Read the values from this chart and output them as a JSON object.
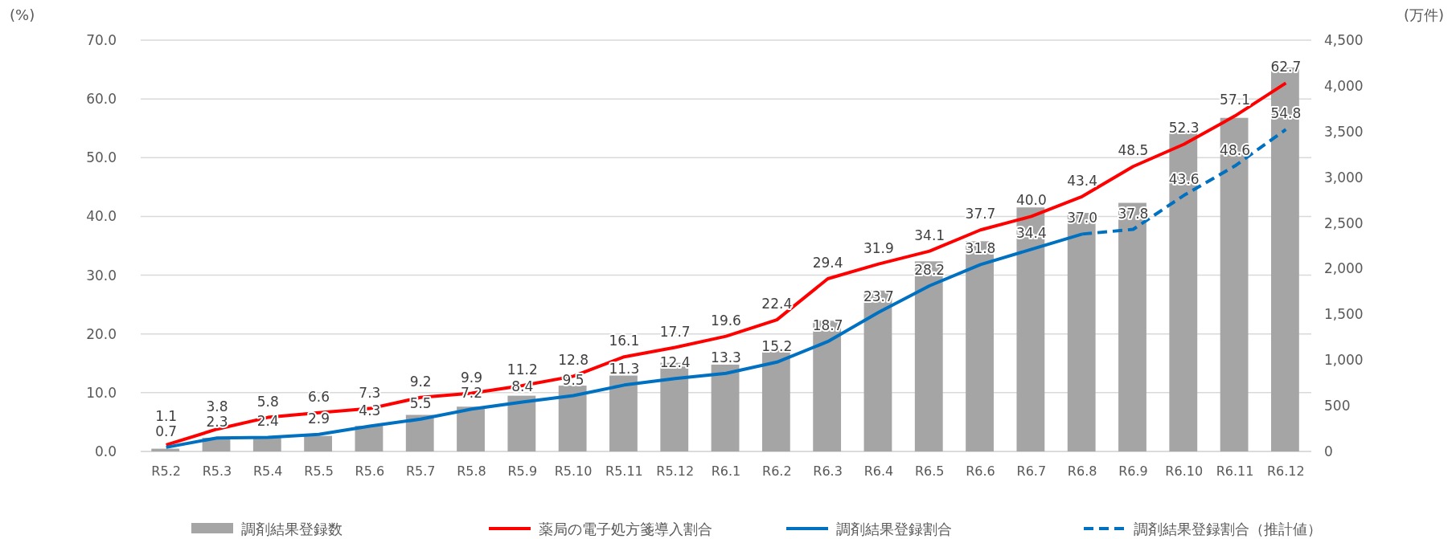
{
  "chart_data": {
    "type": "bar",
    "categories": [
      "R5.2",
      "R5.3",
      "R5.4",
      "R5.5",
      "R5.6",
      "R5.7",
      "R5.8",
      "R5.9",
      "R5.10",
      "R5.11",
      "R5.12",
      "R6.1",
      "R6.2",
      "R6.3",
      "R6.4",
      "R6.5",
      "R6.6",
      "R6.7",
      "R6.8",
      "R6.9",
      "R6.10",
      "R6.11",
      "R6.12"
    ],
    "series": [
      {
        "name": "調剤結果登録数",
        "axis": "y2",
        "color": "#a5a5a5",
        "values": [
          30,
          150,
          150,
          170,
          280,
          400,
          490,
          610,
          720,
          830,
          970,
          950,
          1110,
          1430,
          1760,
          2080,
          2300,
          2670,
          2610,
          2720,
          3510,
          3650,
          4200
        ]
      },
      {
        "name": "薬局の電子処方箋導入割合",
        "type": "line",
        "color": "#ff0000",
        "line_style": "solid",
        "values": [
          1.1,
          3.8,
          5.8,
          6.6,
          7.3,
          9.2,
          9.9,
          11.2,
          12.8,
          16.1,
          17.7,
          19.6,
          22.4,
          29.4,
          31.9,
          34.1,
          37.7,
          40.0,
          43.4,
          48.5,
          52.3,
          57.1,
          62.7
        ],
        "value_labels": [
          "1.1",
          "3.8",
          "5.8",
          "6.6",
          "7.3",
          "9.2",
          "9.9",
          "11.2",
          "12.8",
          "16.1",
          "17.7",
          "19.6",
          "22.4",
          "29.4",
          "31.9",
          "34.1",
          "37.7",
          "40.0",
          "43.4",
          "48.5",
          "52.3",
          "57.1",
          "62.7"
        ]
      },
      {
        "name": "調剤結果登録割合",
        "type": "line",
        "color": "#0070c0",
        "line_style": "solid",
        "values": [
          0.7,
          2.3,
          2.4,
          2.9,
          4.3,
          5.5,
          7.2,
          8.4,
          9.5,
          11.3,
          12.4,
          13.3,
          15.2,
          18.7,
          23.7,
          28.2,
          31.8,
          34.4,
          37.0,
          null,
          null,
          null,
          null
        ],
        "value_labels": [
          "0.7",
          "2.3",
          "2.4",
          "2.9",
          "4.3",
          "5.5",
          "7.2",
          "8.4",
          "9.5",
          "11.3",
          "12.4",
          "13.3",
          "15.2",
          "18.7",
          "23.7",
          "28.2",
          "31.8",
          "34.4",
          "37.0",
          null,
          null,
          null,
          null
        ]
      },
      {
        "name": "調剤結果登録割合（推計値）",
        "type": "line",
        "color": "#0070c0",
        "line_style": "dashed",
        "values": [
          null,
          null,
          null,
          null,
          null,
          null,
          null,
          null,
          null,
          null,
          null,
          null,
          null,
          null,
          null,
          null,
          null,
          null,
          37.0,
          37.8,
          43.6,
          48.6,
          54.8
        ],
        "value_labels": [
          null,
          null,
          null,
          null,
          null,
          null,
          null,
          null,
          null,
          null,
          null,
          null,
          null,
          null,
          null,
          null,
          null,
          null,
          null,
          "37.8",
          "43.6",
          "48.6",
          "54.8"
        ]
      }
    ],
    "ylabel": "(%)",
    "y2label": "(万件)",
    "ylim": [
      0,
      70
    ],
    "yticks": [
      {
        "value": 0,
        "label": "0.0"
      },
      {
        "value": 10,
        "label": "10.0"
      },
      {
        "value": 20,
        "label": "20.0"
      },
      {
        "value": 30,
        "label": "30.0"
      },
      {
        "value": 40,
        "label": "40.0"
      },
      {
        "value": 50,
        "label": "50.0"
      },
      {
        "value": 60,
        "label": "60.0"
      },
      {
        "value": 70,
        "label": "70.0"
      }
    ],
    "y2lim": [
      0,
      4500
    ],
    "y2ticks": [
      0,
      {
        "value": 500,
        "label": "500"
      },
      {
        "value": 1000,
        "label": "1,000"
      },
      {
        "value": 1500,
        "label": "1,500"
      },
      {
        "value": 2000,
        "label": "2,000"
      },
      {
        "value": 2500,
        "label": "2,500"
      },
      {
        "value": 3000,
        "label": "3,000"
      },
      {
        "value": 3500,
        "label": "3,500"
      },
      {
        "value": 4000,
        "label": "4,000"
      },
      {
        "value": 4500,
        "label": "4,500"
      }
    ],
    "grid": "y",
    "legend": "bottom"
  }
}
